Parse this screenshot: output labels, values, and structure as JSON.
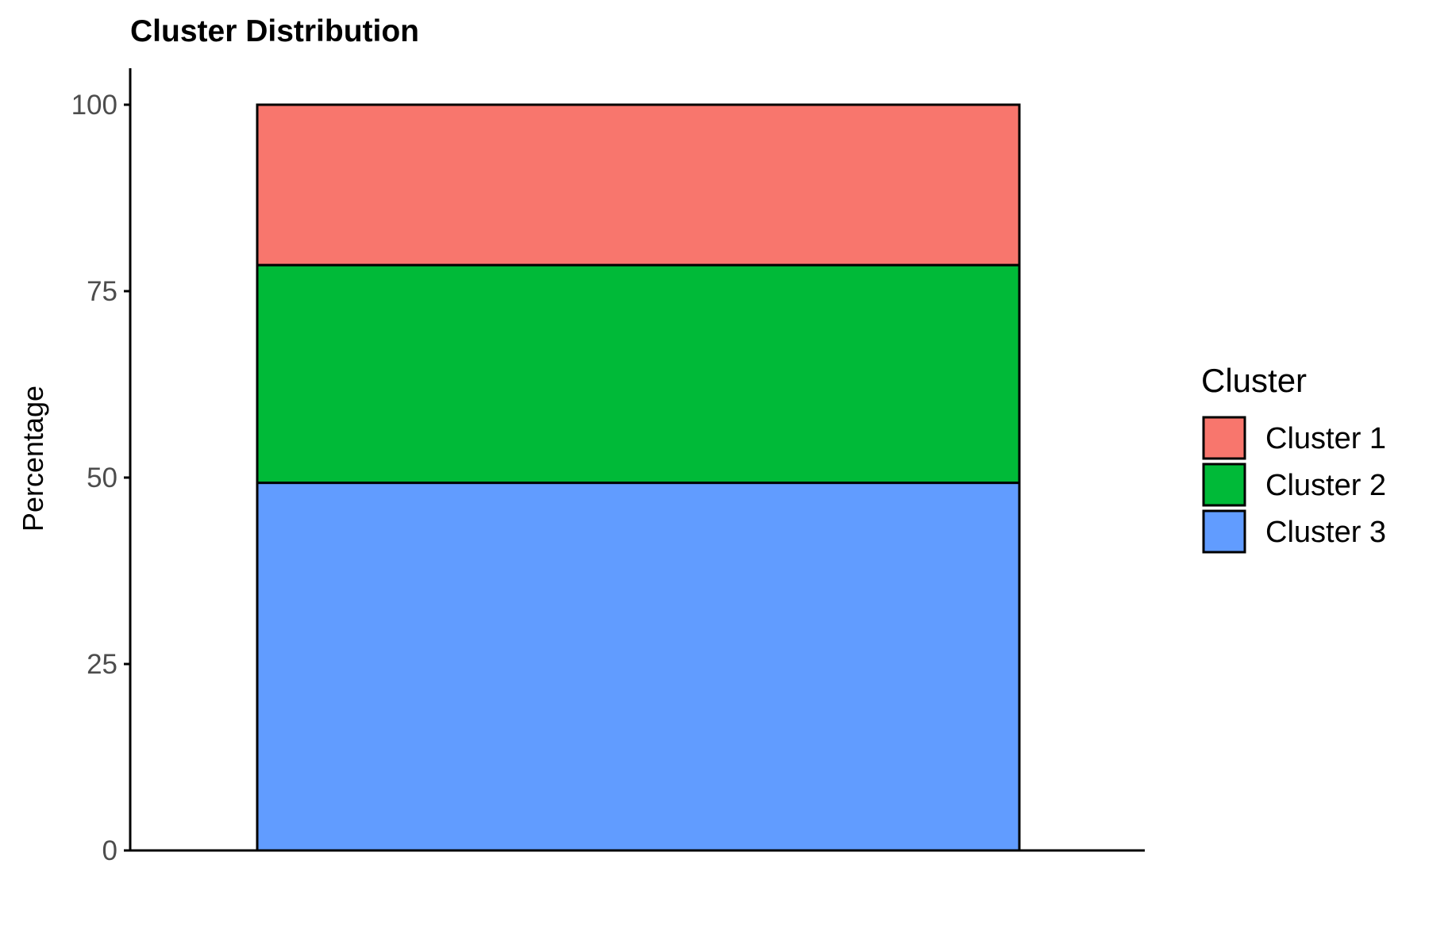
{
  "chart_data": {
    "type": "bar",
    "stacked": true,
    "title": "Cluster Distribution",
    "xlabel": "",
    "ylabel": "Percentage",
    "ylim": [
      0,
      100
    ],
    "yticks": [
      "0",
      "25",
      "50",
      "75",
      "100"
    ],
    "categories": [
      ""
    ],
    "grid": false,
    "legend": {
      "title": "Cluster",
      "placement": "right"
    },
    "series": [
      {
        "name": "Cluster 1",
        "values": [
          21.5
        ],
        "color": "#F8766D"
      },
      {
        "name": "Cluster 2",
        "values": [
          29.2
        ],
        "color": "#00BA38"
      },
      {
        "name": "Cluster 3",
        "values": [
          49.3
        ],
        "color": "#619CFF"
      }
    ]
  }
}
